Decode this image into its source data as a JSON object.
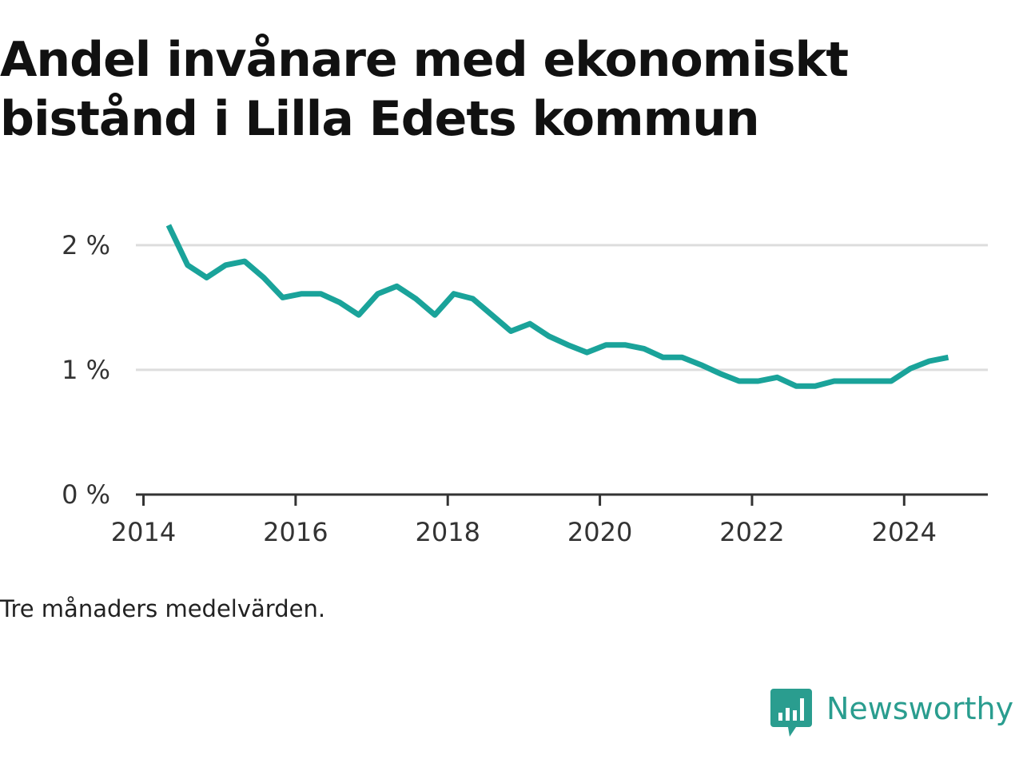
{
  "title": "Andel invånare med ekonomiskt bistånd i Lilla Edets kommun",
  "note": "Tre månaders medelvärden.",
  "brand": {
    "name": "Newsworthy",
    "logo_icon": "bar-chart-speech-bubble-icon",
    "color": "#2a9d8f"
  },
  "chart_data": {
    "type": "line",
    "title": "Andel invånare med ekonomiskt bistånd i Lilla Edets kommun",
    "xlabel": "",
    "ylabel": "",
    "x_ticks": [
      "2014",
      "2016",
      "2018",
      "2020",
      "2022",
      "2024"
    ],
    "y_ticks": [
      "0 %",
      "1 %",
      "2 %"
    ],
    "xlim": [
      2013.9,
      2025.1
    ],
    "ylim": [
      0,
      2.3
    ],
    "grid": true,
    "legend": "none",
    "series": [
      {
        "color": "#1aa39a",
        "x": [
          2014.33,
          2014.58,
          2014.83,
          2015.08,
          2015.33,
          2015.58,
          2015.83,
          2016.08,
          2016.33,
          2016.58,
          2016.83,
          2017.08,
          2017.33,
          2017.58,
          2017.83,
          2018.08,
          2018.33,
          2018.58,
          2018.83,
          2019.08,
          2019.33,
          2019.58,
          2019.83,
          2020.08,
          2020.33,
          2020.58,
          2020.83,
          2021.08,
          2021.33,
          2021.58,
          2021.83,
          2022.08,
          2022.33,
          2022.58,
          2022.83,
          2023.08,
          2023.33,
          2023.58,
          2023.83,
          2024.08,
          2024.33,
          2024.58
        ],
        "y": [
          2.16,
          1.84,
          1.74,
          1.84,
          1.87,
          1.74,
          1.58,
          1.61,
          1.61,
          1.54,
          1.44,
          1.61,
          1.67,
          1.57,
          1.44,
          1.61,
          1.57,
          1.44,
          1.31,
          1.37,
          1.27,
          1.2,
          1.14,
          1.2,
          1.2,
          1.17,
          1.1,
          1.1,
          1.04,
          0.97,
          0.91,
          0.91,
          0.94,
          0.87,
          0.87,
          0.91,
          0.91,
          0.91,
          0.91,
          1.01,
          1.07,
          1.1
        ]
      }
    ]
  }
}
